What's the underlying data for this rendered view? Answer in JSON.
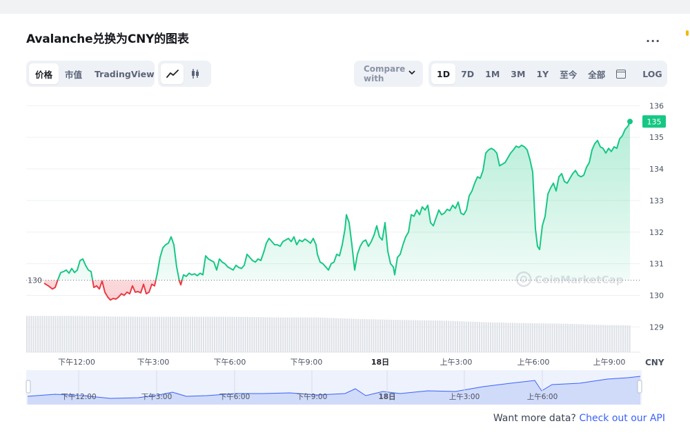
{
  "header": {
    "title": "Avalanche兑换为CNY的图表",
    "more_label": "..."
  },
  "toolbar": {
    "view_tabs": [
      "价格",
      "市值",
      "TradingView"
    ],
    "active_view": "价格",
    "chart_type_icons": [
      "line-chart-icon",
      "candlestick-icon"
    ],
    "compare_label": "Compare with",
    "ranges": [
      "1D",
      "7D",
      "1M",
      "3M",
      "1Y",
      "至今",
      "全部"
    ],
    "active_range": "1D",
    "calendar_icon": "calendar-icon",
    "log_label": "LOG"
  },
  "chart_data": {
    "type": "area",
    "title": "",
    "xlabel": "",
    "ylabel": "",
    "unit_label": "CNY",
    "ylim": [
      128.2,
      136.4
    ],
    "y_ticks": [
      129,
      130,
      131,
      132,
      133,
      134,
      135,
      136
    ],
    "x_ticks": [
      "下午12:00",
      "下午3:00",
      "下午6:00",
      "下午9:00",
      "18日",
      "上午3:00",
      "上午6:00",
      "上午9:00"
    ],
    "baseline": 130.48,
    "baseline_label": "130",
    "current_price_label": "135",
    "up_color": "#16c784",
    "down_color": "#ea3943",
    "watermark": "CoinMarketCap",
    "points": [
      [
        64,
        130.38
      ],
      [
        70,
        130.3
      ],
      [
        76,
        130.2
      ],
      [
        80,
        130.25
      ],
      [
        84,
        130.5
      ],
      [
        88,
        130.72
      ],
      [
        92,
        130.75
      ],
      [
        96,
        130.8
      ],
      [
        100,
        130.7
      ],
      [
        104,
        130.85
      ],
      [
        108,
        130.72
      ],
      [
        112,
        130.8
      ],
      [
        116,
        131.1
      ],
      [
        120,
        131.15
      ],
      [
        124,
        130.95
      ],
      [
        128,
        130.8
      ],
      [
        132,
        130.75
      ],
      [
        136,
        130.25
      ],
      [
        140,
        130.3
      ],
      [
        144,
        130.2
      ],
      [
        148,
        130.45
      ],
      [
        152,
        130.1
      ],
      [
        156,
        129.95
      ],
      [
        160,
        129.85
      ],
      [
        164,
        129.9
      ],
      [
        168,
        129.88
      ],
      [
        172,
        129.95
      ],
      [
        176,
        130.05
      ],
      [
        180,
        130.0
      ],
      [
        184,
        130.1
      ],
      [
        188,
        130.05
      ],
      [
        192,
        130.3
      ],
      [
        196,
        130.1
      ],
      [
        200,
        130.12
      ],
      [
        204,
        130.08
      ],
      [
        208,
        130.35
      ],
      [
        212,
        130.05
      ],
      [
        216,
        130.1
      ],
      [
        220,
        130.35
      ],
      [
        224,
        130.3
      ],
      [
        228,
        130.7
      ],
      [
        232,
        131.2
      ],
      [
        236,
        131.5
      ],
      [
        240,
        131.6
      ],
      [
        244,
        131.65
      ],
      [
        248,
        131.85
      ],
      [
        252,
        131.6
      ],
      [
        256,
        130.9
      ],
      [
        260,
        130.45
      ],
      [
        262,
        130.33
      ],
      [
        266,
        130.65
      ],
      [
        270,
        130.6
      ],
      [
        274,
        130.7
      ],
      [
        278,
        130.65
      ],
      [
        282,
        130.68
      ],
      [
        286,
        130.62
      ],
      [
        290,
        130.7
      ],
      [
        294,
        130.65
      ],
      [
        298,
        131.25
      ],
      [
        302,
        131.15
      ],
      [
        306,
        131.1
      ],
      [
        310,
        131.05
      ],
      [
        314,
        130.8
      ],
      [
        318,
        131.15
      ],
      [
        322,
        131.05
      ],
      [
        326,
        131.0
      ],
      [
        330,
        130.9
      ],
      [
        334,
        130.85
      ],
      [
        338,
        130.8
      ],
      [
        342,
        130.95
      ],
      [
        346,
        130.88
      ],
      [
        350,
        130.85
      ],
      [
        354,
        130.95
      ],
      [
        358,
        131.3
      ],
      [
        362,
        131.2
      ],
      [
        366,
        131.1
      ],
      [
        370,
        131.05
      ],
      [
        374,
        131.15
      ],
      [
        378,
        131.1
      ],
      [
        382,
        131.35
      ],
      [
        386,
        131.65
      ],
      [
        390,
        131.8
      ],
      [
        394,
        131.7
      ],
      [
        398,
        131.6
      ],
      [
        402,
        131.6
      ],
      [
        406,
        131.55
      ],
      [
        410,
        131.7
      ],
      [
        414,
        131.75
      ],
      [
        418,
        131.8
      ],
      [
        422,
        131.7
      ],
      [
        426,
        131.85
      ],
      [
        430,
        131.6
      ],
      [
        434,
        131.75
      ],
      [
        438,
        131.7
      ],
      [
        442,
        131.78
      ],
      [
        446,
        131.72
      ],
      [
        450,
        131.65
      ],
      [
        454,
        131.8
      ],
      [
        458,
        131.6
      ],
      [
        460,
        131.3
      ],
      [
        464,
        131.05
      ],
      [
        468,
        131.0
      ],
      [
        472,
        130.9
      ],
      [
        476,
        130.8
      ],
      [
        480,
        131.0
      ],
      [
        484,
        131.05
      ],
      [
        488,
        131.3
      ],
      [
        492,
        131.25
      ],
      [
        496,
        131.6
      ],
      [
        500,
        132.1
      ],
      [
        502,
        132.55
      ],
      [
        506,
        132.3
      ],
      [
        510,
        131.6
      ],
      [
        514,
        130.8
      ],
      [
        518,
        131.3
      ],
      [
        522,
        131.55
      ],
      [
        526,
        131.7
      ],
      [
        530,
        131.75
      ],
      [
        534,
        131.55
      ],
      [
        538,
        131.7
      ],
      [
        542,
        131.9
      ],
      [
        546,
        132.2
      ],
      [
        550,
        131.85
      ],
      [
        554,
        131.75
      ],
      [
        558,
        132.3
      ],
      [
        562,
        131.4
      ],
      [
        566,
        131.0
      ],
      [
        570,
        130.9
      ],
      [
        572,
        130.65
      ],
      [
        576,
        131.2
      ],
      [
        580,
        131.3
      ],
      [
        584,
        131.6
      ],
      [
        588,
        131.85
      ],
      [
        592,
        132.0
      ],
      [
        596,
        132.55
      ],
      [
        600,
        132.5
      ],
      [
        604,
        132.7
      ],
      [
        608,
        132.55
      ],
      [
        612,
        132.8
      ],
      [
        616,
        132.7
      ],
      [
        620,
        132.85
      ],
      [
        624,
        132.3
      ],
      [
        628,
        132.2
      ],
      [
        632,
        132.45
      ],
      [
        636,
        132.7
      ],
      [
        640,
        132.55
      ],
      [
        644,
        132.6
      ],
      [
        648,
        132.72
      ],
      [
        652,
        132.68
      ],
      [
        656,
        132.85
      ],
      [
        660,
        132.75
      ],
      [
        664,
        132.95
      ],
      [
        668,
        132.6
      ],
      [
        672,
        132.55
      ],
      [
        676,
        132.7
      ],
      [
        680,
        133.15
      ],
      [
        684,
        133.3
      ],
      [
        688,
        133.55
      ],
      [
        692,
        133.75
      ],
      [
        696,
        133.7
      ],
      [
        700,
        133.95
      ],
      [
        704,
        134.5
      ],
      [
        708,
        134.6
      ],
      [
        712,
        134.65
      ],
      [
        716,
        134.6
      ],
      [
        720,
        134.5
      ],
      [
        724,
        134.1
      ],
      [
        728,
        134.15
      ],
      [
        732,
        134.2
      ],
      [
        736,
        134.35
      ],
      [
        740,
        134.5
      ],
      [
        744,
        134.6
      ],
      [
        748,
        134.72
      ],
      [
        752,
        134.68
      ],
      [
        756,
        134.75
      ],
      [
        760,
        134.7
      ],
      [
        764,
        134.6
      ],
      [
        768,
        134.3
      ],
      [
        772,
        133.9
      ],
      [
        776,
        132.1
      ],
      [
        779,
        131.55
      ],
      [
        782,
        131.45
      ],
      [
        786,
        132.2
      ],
      [
        790,
        132.5
      ],
      [
        794,
        133.2
      ],
      [
        798,
        133.4
      ],
      [
        802,
        133.55
      ],
      [
        806,
        133.3
      ],
      [
        810,
        133.75
      ],
      [
        814,
        133.85
      ],
      [
        818,
        133.6
      ],
      [
        822,
        133.55
      ],
      [
        826,
        133.7
      ],
      [
        830,
        133.85
      ],
      [
        834,
        133.95
      ],
      [
        838,
        133.8
      ],
      [
        842,
        133.75
      ],
      [
        846,
        133.8
      ],
      [
        850,
        134.05
      ],
      [
        854,
        134.2
      ],
      [
        858,
        134.6
      ],
      [
        862,
        134.8
      ],
      [
        866,
        134.9
      ],
      [
        870,
        134.7
      ],
      [
        874,
        134.65
      ],
      [
        878,
        134.5
      ],
      [
        882,
        134.65
      ],
      [
        886,
        134.55
      ],
      [
        890,
        134.7
      ],
      [
        894,
        134.65
      ],
      [
        898,
        134.95
      ],
      [
        902,
        135.05
      ],
      [
        906,
        135.25
      ],
      [
        910,
        135.35
      ],
      [
        913,
        135.5
      ]
    ],
    "volume": [
      [
        40,
        129.35
      ],
      [
        100,
        129.35
      ],
      [
        160,
        129.33
      ],
      [
        220,
        129.32
      ],
      [
        280,
        129.32
      ],
      [
        340,
        129.32
      ],
      [
        400,
        129.3
      ],
      [
        460,
        129.3
      ],
      [
        520,
        129.25
      ],
      [
        580,
        129.22
      ],
      [
        640,
        129.2
      ],
      [
        700,
        129.15
      ],
      [
        760,
        129.12
      ],
      [
        820,
        129.1
      ],
      [
        880,
        129.06
      ],
      [
        913,
        129.05
      ]
    ],
    "navigator": [
      [
        40,
        575
      ],
      [
        80,
        572
      ],
      [
        120,
        574
      ],
      [
        160,
        578
      ],
      [
        200,
        577
      ],
      [
        230,
        573
      ],
      [
        250,
        569
      ],
      [
        270,
        575
      ],
      [
        300,
        574
      ],
      [
        340,
        571
      ],
      [
        380,
        571
      ],
      [
        420,
        570
      ],
      [
        460,
        573
      ],
      [
        500,
        571
      ],
      [
        515,
        564
      ],
      [
        530,
        574
      ],
      [
        555,
        568
      ],
      [
        580,
        571
      ],
      [
        620,
        567
      ],
      [
        660,
        568
      ],
      [
        700,
        561
      ],
      [
        740,
        556
      ],
      [
        775,
        552
      ],
      [
        785,
        567
      ],
      [
        800,
        558
      ],
      [
        840,
        556
      ],
      [
        880,
        550
      ],
      [
        910,
        548
      ],
      [
        928,
        546
      ]
    ],
    "navigator_ticks": [
      "下午12:00",
      "下午3:00",
      "下午6:00",
      "下午9:00",
      "18日",
      "上午3:00",
      "上午6:00"
    ]
  },
  "footer": {
    "prefix": "Want more data?",
    "link": "Check out our API"
  }
}
